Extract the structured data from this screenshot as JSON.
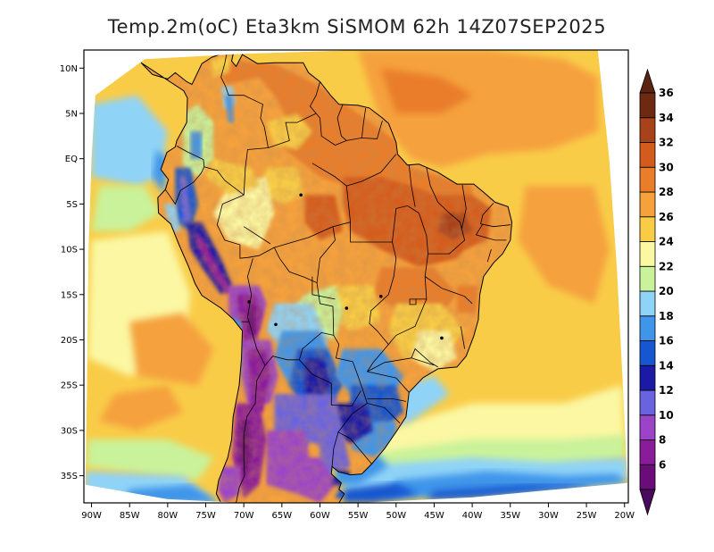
{
  "title": "Temp.2m(oC) Eta3km SiSMOM 62h 14Z07SEP2025",
  "map": {
    "variable": "2m temperature",
    "units": "oC",
    "lon_range": [
      -91,
      -19.5
    ],
    "lat_range": [
      -38,
      12
    ],
    "lat_ticks": [
      {
        "value": 10,
        "label": "10N"
      },
      {
        "value": 5,
        "label": "5N"
      },
      {
        "value": 0,
        "label": "EQ"
      },
      {
        "value": -5,
        "label": "5S"
      },
      {
        "value": -10,
        "label": "10S"
      },
      {
        "value": -15,
        "label": "15S"
      },
      {
        "value": -20,
        "label": "20S"
      },
      {
        "value": -25,
        "label": "25S"
      },
      {
        "value": -30,
        "label": "30S"
      },
      {
        "value": -35,
        "label": "35S"
      }
    ],
    "lon_ticks": [
      {
        "value": -90,
        "label": "90W"
      },
      {
        "value": -85,
        "label": "85W"
      },
      {
        "value": -80,
        "label": "80W"
      },
      {
        "value": -75,
        "label": "75W"
      },
      {
        "value": -70,
        "label": "70W"
      },
      {
        "value": -65,
        "label": "65W"
      },
      {
        "value": -60,
        "label": "60W"
      },
      {
        "value": -55,
        "label": "55W"
      },
      {
        "value": -50,
        "label": "50W"
      },
      {
        "value": -45,
        "label": "45W"
      },
      {
        "value": -40,
        "label": "40W"
      },
      {
        "value": -35,
        "label": "35W"
      },
      {
        "value": -30,
        "label": "30W"
      },
      {
        "value": -25,
        "label": "25W"
      },
      {
        "value": -20,
        "label": "20W"
      }
    ]
  },
  "colorbar": {
    "levels": [
      {
        "label": "6",
        "color": "#6a0d78"
      },
      {
        "label": "8",
        "color": "#8a1c9c"
      },
      {
        "label": "10",
        "color": "#9b44c8"
      },
      {
        "label": "12",
        "color": "#6a63e0"
      },
      {
        "label": "14",
        "color": "#1a1aa6"
      },
      {
        "label": "16",
        "color": "#1656d0"
      },
      {
        "label": "18",
        "color": "#3f95ea"
      },
      {
        "label": "20",
        "color": "#8fd3f7"
      },
      {
        "label": "22",
        "color": "#c9f29a"
      },
      {
        "label": "24",
        "color": "#fbf7a2"
      },
      {
        "label": "26",
        "color": "#f8cd45"
      },
      {
        "label": "28",
        "color": "#f5a13c"
      },
      {
        "label": "30",
        "color": "#e97d2a"
      },
      {
        "label": "32",
        "color": "#d45b1e"
      },
      {
        "label": "34",
        "color": "#a8421a"
      },
      {
        "label": "36",
        "color": "#6d2a10"
      }
    ],
    "low_color": "#4a0a5e",
    "high_color": "#5a2410"
  }
}
